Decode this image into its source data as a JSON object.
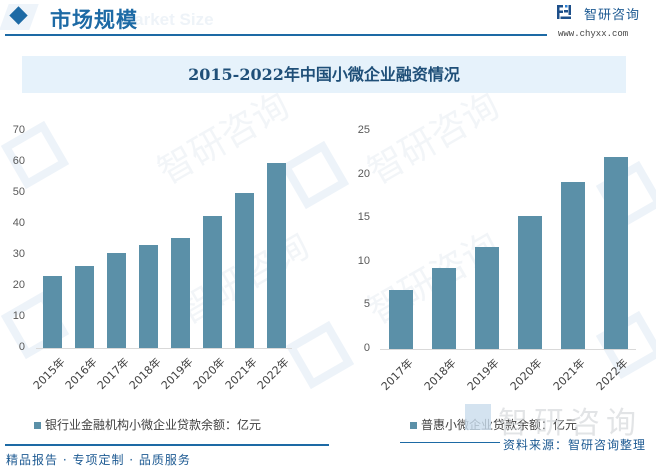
{
  "header": {
    "section_title": "市场规模",
    "section_subtitle": "Market Size",
    "logo_text": "智研咨询",
    "logo_url": "www.chyxx.com"
  },
  "title": "2015-2022年中国小微企业融资情况",
  "colors": {
    "bar": "#5b90a8",
    "brand_blue": "#1d6aa5",
    "title_band": "#e6f2fb",
    "title_text": "#1f4f78"
  },
  "chart_data": [
    {
      "type": "bar",
      "title": "",
      "categories": [
        "2015年",
        "2016年",
        "2017年",
        "2018年",
        "2019年",
        "2020年",
        "2021年",
        "2022年"
      ],
      "values": [
        23.2,
        26.4,
        30.6,
        33.2,
        35.4,
        42.5,
        49.9,
        59.5
      ],
      "series": [
        {
          "name": "银行业金融机构小微企业贷款余额：亿元",
          "values": [
            23.2,
            26.4,
            30.6,
            33.2,
            35.4,
            42.5,
            49.9,
            59.5
          ]
        }
      ],
      "xlabel": "",
      "ylabel": "",
      "ylim": [
        0,
        70
      ],
      "yticks": [
        "70",
        "60",
        "50",
        "40",
        "30",
        "20",
        "10",
        "0"
      ],
      "grid": false,
      "legend_position": "bottom"
    },
    {
      "type": "bar",
      "title": "",
      "categories": [
        "2017年",
        "2018年",
        "2019年",
        "2020年",
        "2021年",
        "2022年"
      ],
      "values": [
        6.7,
        9.3,
        11.6,
        15.2,
        19.1,
        21.9
      ],
      "series": [
        {
          "name": "普惠小微企业贷款余额：亿元",
          "values": [
            6.7,
            9.3,
            11.6,
            15.2,
            19.1,
            21.9
          ]
        }
      ],
      "xlabel": "",
      "ylabel": "",
      "ylim": [
        0,
        25
      ],
      "yticks": [
        "25",
        "20",
        "15",
        "10",
        "5",
        "0"
      ],
      "grid": false,
      "legend_position": "bottom"
    }
  ],
  "footer": {
    "tagline": "精品报告 · 专项定制 · 品质服务",
    "source": "资料来源：智研咨询整理",
    "watermark": "智研咨询"
  }
}
